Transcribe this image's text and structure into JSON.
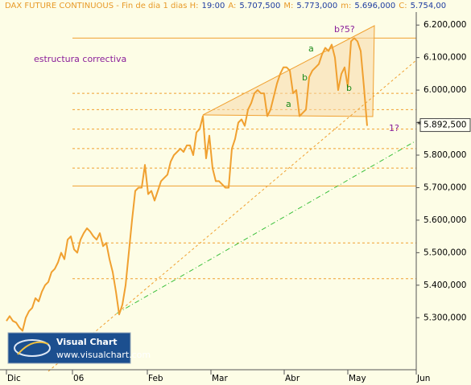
{
  "chart_data": {
    "type": "line",
    "header": [
      {
        "text": "DAX FUTURE CONTINUOUS - Fin de dia 1 dias H:",
        "color": "#e89a28"
      },
      {
        "text": "19:00",
        "color": "#1e3ca0"
      },
      {
        "text": "A:",
        "color": "#e89a28"
      },
      {
        "text": "5.707,500",
        "color": "#1e3ca0"
      },
      {
        "text": "M:",
        "color": "#e89a28"
      },
      {
        "text": "5.773,000",
        "color": "#1e3ca0"
      },
      {
        "text": "m:",
        "color": "#e89a28"
      },
      {
        "text": "5.696,000",
        "color": "#1e3ca0"
      },
      {
        "text": "C:",
        "color": "#e89a28"
      },
      {
        "text": "5.754,00",
        "color": "#1e3ca0"
      }
    ],
    "annotations": [
      {
        "text": "estructura correctiva",
        "color": "#8a1e9a"
      },
      {
        "text": "b?5?",
        "color": "#8a1e9a"
      },
      {
        "text": "a",
        "color": "#1a8a1a"
      },
      {
        "text": "b",
        "color": "#1a8a1a"
      },
      {
        "text": "a",
        "color": "#1a8a1a"
      },
      {
        "text": "b",
        "color": "#1a8a1a"
      },
      {
        "text": "1?",
        "color": "#8a1e9a"
      }
    ],
    "logo": {
      "title": "Visual Chart",
      "url": "www.visualchart.com"
    },
    "xlim": [
      -2,
      127.25
    ],
    "xticks": [
      {
        "value": 0,
        "label": "Dic"
      },
      {
        "value": 20.5,
        "label": "06"
      },
      {
        "value": 43.75,
        "label": "Feb"
      },
      {
        "value": 63.5,
        "label": "Mar"
      },
      {
        "value": 86.25,
        "label": "Abr"
      },
      {
        "value": 106,
        "label": "May"
      },
      {
        "value": 127.25,
        "label": "Jun"
      }
    ],
    "ylim": [
      5140,
      6240
    ],
    "yticks": [
      {
        "value": 5300,
        "label": "5.300,000"
      },
      {
        "value": 5400,
        "label": "5.400,000"
      },
      {
        "value": 5500,
        "label": "5.500,000"
      },
      {
        "value": 5600,
        "label": "5.600,000"
      },
      {
        "value": 5700,
        "label": "5.700,000"
      },
      {
        "value": 5800,
        "label": "5.800,000"
      },
      {
        "value": 5900,
        "label": "5.900,000"
      },
      {
        "value": 6000,
        "label": "6.000,000"
      },
      {
        "value": 6100,
        "label": "6.100,000"
      },
      {
        "value": 6200,
        "label": "6.200,000"
      }
    ],
    "last_value": {
      "value": 5892.5,
      "label": "5.892,500"
    },
    "hlines": [
      {
        "value": 6160,
        "style": "solid"
      },
      {
        "value": 5990,
        "style": "dashed"
      },
      {
        "value": 5940,
        "style": "dashed"
      },
      {
        "value": 5880,
        "style": "dashed"
      },
      {
        "value": 5820,
        "style": "dashed"
      },
      {
        "value": 5760,
        "style": "dashed"
      },
      {
        "value": 5705,
        "style": "solid"
      },
      {
        "value": 5530,
        "style": "dashed"
      },
      {
        "value": 5420,
        "style": "dashed"
      }
    ],
    "series": [
      {
        "color": "#f0a030",
        "x": [
          0,
          1,
          2,
          3,
          4,
          5,
          6,
          7,
          8,
          9,
          10,
          11,
          12,
          13,
          14,
          15,
          16,
          17,
          18,
          19,
          20,
          21,
          22,
          23,
          24,
          25,
          26,
          27,
          28,
          29,
          30,
          31,
          32,
          33,
          34,
          35,
          36,
          37,
          38,
          39,
          40,
          41,
          42,
          43,
          44,
          45,
          46,
          47,
          48,
          49,
          50,
          51,
          52,
          53,
          54,
          55,
          56,
          57,
          58,
          59,
          60,
          61,
          62,
          63,
          64,
          65,
          66,
          67,
          68,
          69,
          70,
          71,
          72,
          73,
          74,
          75,
          76,
          77,
          78,
          79,
          80,
          81,
          82,
          83,
          84,
          85,
          86,
          87,
          88,
          89,
          90,
          91,
          92,
          93,
          94,
          95,
          96,
          97,
          98,
          99,
          100,
          101,
          102,
          103,
          104,
          105,
          106,
          107,
          108,
          109,
          110,
          111,
          112
        ],
        "values": [
          5290,
          5305,
          5290,
          5285,
          5270,
          5260,
          5300,
          5320,
          5330,
          5360,
          5350,
          5380,
          5400,
          5410,
          5440,
          5450,
          5470,
          5500,
          5480,
          5540,
          5550,
          5510,
          5500,
          5540,
          5560,
          5575,
          5565,
          5550,
          5540,
          5560,
          5520,
          5530,
          5480,
          5440,
          5380,
          5310,
          5340,
          5400,
          5500,
          5600,
          5690,
          5700,
          5700,
          5770,
          5680,
          5690,
          5660,
          5690,
          5720,
          5730,
          5740,
          5780,
          5800,
          5810,
          5820,
          5810,
          5830,
          5830,
          5800,
          5870,
          5880,
          5920,
          5790,
          5860,
          5760,
          5720,
          5720,
          5710,
          5700,
          5700,
          5820,
          5850,
          5900,
          5910,
          5890,
          5940,
          5960,
          5990,
          6000,
          5990,
          5990,
          5920,
          5940,
          5980,
          6020,
          6050,
          6070,
          6070,
          6060,
          5990,
          6000,
          5920,
          5930,
          5940,
          6040,
          6060,
          6070,
          6080,
          6110,
          6130,
          6120,
          6140,
          6100,
          6000,
          6050,
          6070,
          6010,
          6150,
          6160,
          6150,
          6120,
          6010,
          5890
        ]
      }
    ]
  }
}
